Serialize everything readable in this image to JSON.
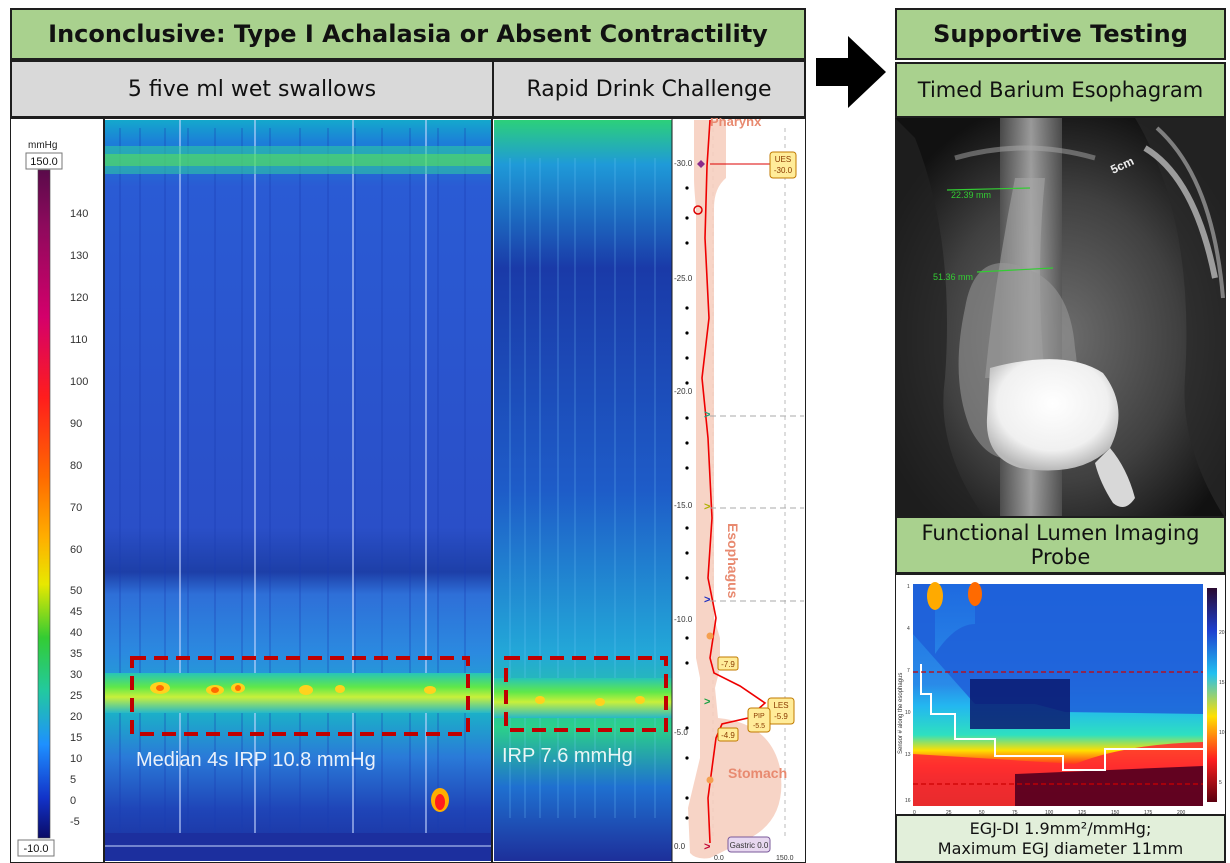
{
  "left_panel": {
    "title": "Inconclusive: Type I Achalasia or Absent Contractility",
    "swallows_label": "5 five ml wet swallows",
    "rdc_label": "Rapid Drink Challenge",
    "scale": {
      "unit": "mmHg",
      "max_label": "150.0",
      "min_label": "-10.0",
      "ticks": [
        "140",
        "130",
        "120",
        "110",
        "100",
        "90",
        "80",
        "70",
        "60",
        "50",
        "45",
        "40",
        "35",
        "30",
        "25",
        "20",
        "15",
        "10",
        "5",
        "0",
        "-5"
      ]
    },
    "swallows_irp": "Median 4s IRP 10.8 mmHg",
    "rdc_irp": "IRP 7.6 mmHg",
    "depth_axis": {
      "ticks": [
        "-30.0",
        "-25.0",
        "-20.0",
        "-15.0",
        "-10.0",
        "-5.0",
        "0.0"
      ],
      "bottom_ticks": [
        "0.0",
        "150.0"
      ],
      "region_pharynx": "Pharynx",
      "region_esophagus": "Esophagus",
      "region_stomach": "Stomach",
      "ues_label": "UES",
      "ues_value": "-30.0",
      "les_label": "LES",
      "les_value": "-5.9",
      "pip_label": "PIP",
      "pip_value": "-5.5",
      "marker_upper": "-7.9",
      "marker_lower": "-4.9",
      "gastric_label": "Gastric 0.0"
    }
  },
  "right_panel": {
    "title": "Supportive Testing",
    "barium_label": "Timed Barium Esophagram",
    "xray": {
      "measure_1": "22.39 mm",
      "measure_2": "51.36 mm",
      "marker": "5cm"
    },
    "flip_label": "Functional Lumen Imaging Probe",
    "egj_line1": "EGJ-DI 1.9mm²/mmHg;",
    "egj_line2": "Maximum EGJ diameter 11mm",
    "flip_axis_ylabel": "Sensor # along the esophagus",
    "flip_x_ticks": [
      "0",
      "25",
      "50",
      "75",
      "100",
      "125",
      "150",
      "175",
      "200"
    ],
    "flip_y_ticks": [
      "1",
      "2",
      "3",
      "4",
      "5",
      "6",
      "7",
      "8",
      "9",
      "10",
      "11",
      "12",
      "13",
      "14",
      "15",
      "16"
    ],
    "flip_scale_ticks": [
      "20",
      "15",
      "10",
      "5"
    ]
  },
  "colors": {
    "header_green": "#a9d18e",
    "header_gray": "#d9d9d9",
    "label_light_green": "#e2efda",
    "box_red_dashed": "#c00000"
  }
}
